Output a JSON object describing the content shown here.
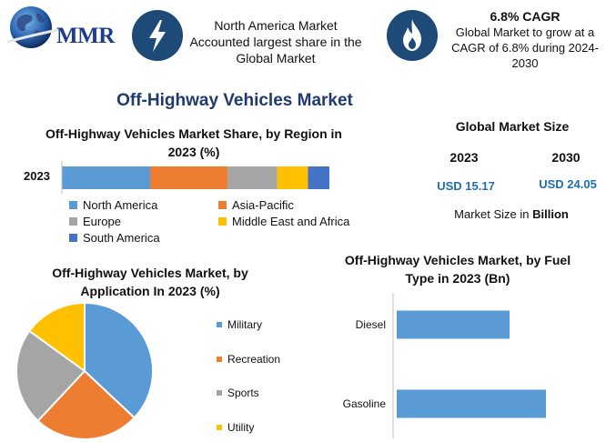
{
  "header": {
    "logo_text": "MMR",
    "box1_text": "North America Market Accounted largest share in the Global Market",
    "box1_icon": "lightning-icon",
    "box2_title": "6.8% CAGR",
    "box2_text": "Global Market to grow at a CAGR of 6.8% during 2024-2030",
    "box2_icon": "flame-icon",
    "icon_bg_color": "#1e4a78"
  },
  "title": "Off-Highway Vehicles Market",
  "market_size": {
    "heading": "Global Market Size",
    "year1": "2023",
    "year2": "2030",
    "value1": "USD 15.17",
    "value2": "USD 24.05",
    "unit_prefix": "Market Size in",
    "unit_word": "Billion"
  },
  "chart_data": [
    {
      "type": "bar",
      "orientation": "horizontal-stacked",
      "title": "Off-Highway Vehicles Market Share, by Region in 2023 (%)",
      "categories": [
        "2023"
      ],
      "series": [
        {
          "name": "North America",
          "values": [
            33
          ],
          "color": "#5b9bd5"
        },
        {
          "name": "Asia-Pacific",
          "values": [
            29
          ],
          "color": "#ed7d31"
        },
        {
          "name": "Europe",
          "values": [
            18.5
          ],
          "color": "#a5a5a5"
        },
        {
          "name": "Middle East and Africa",
          "values": [
            11.5
          ],
          "color": "#ffc000"
        },
        {
          "name": "South America",
          "values": [
            8
          ],
          "color": "#4472c4"
        }
      ],
      "legend_position": "bottom"
    },
    {
      "type": "pie",
      "title": "Off-Highway Vehicles Market, by Application In 2023 (%)",
      "labels": [
        "Military",
        "Recreation",
        "Sports",
        "Utility"
      ],
      "values": [
        37,
        25,
        23,
        15
      ],
      "colors": [
        "#5b9bd5",
        "#ed7d31",
        "#a5a5a5",
        "#ffc000"
      ],
      "legend_position": "right"
    },
    {
      "type": "bar",
      "orientation": "horizontal",
      "title": "Off-Highway Vehicles Market, by Fuel Type in 2023 (Bn)",
      "categories": [
        "Diesel",
        "Gasoline"
      ],
      "values": [
        6.2,
        8.2
      ],
      "xlim": [
        0,
        10
      ],
      "color": "#5b9bd5"
    }
  ]
}
